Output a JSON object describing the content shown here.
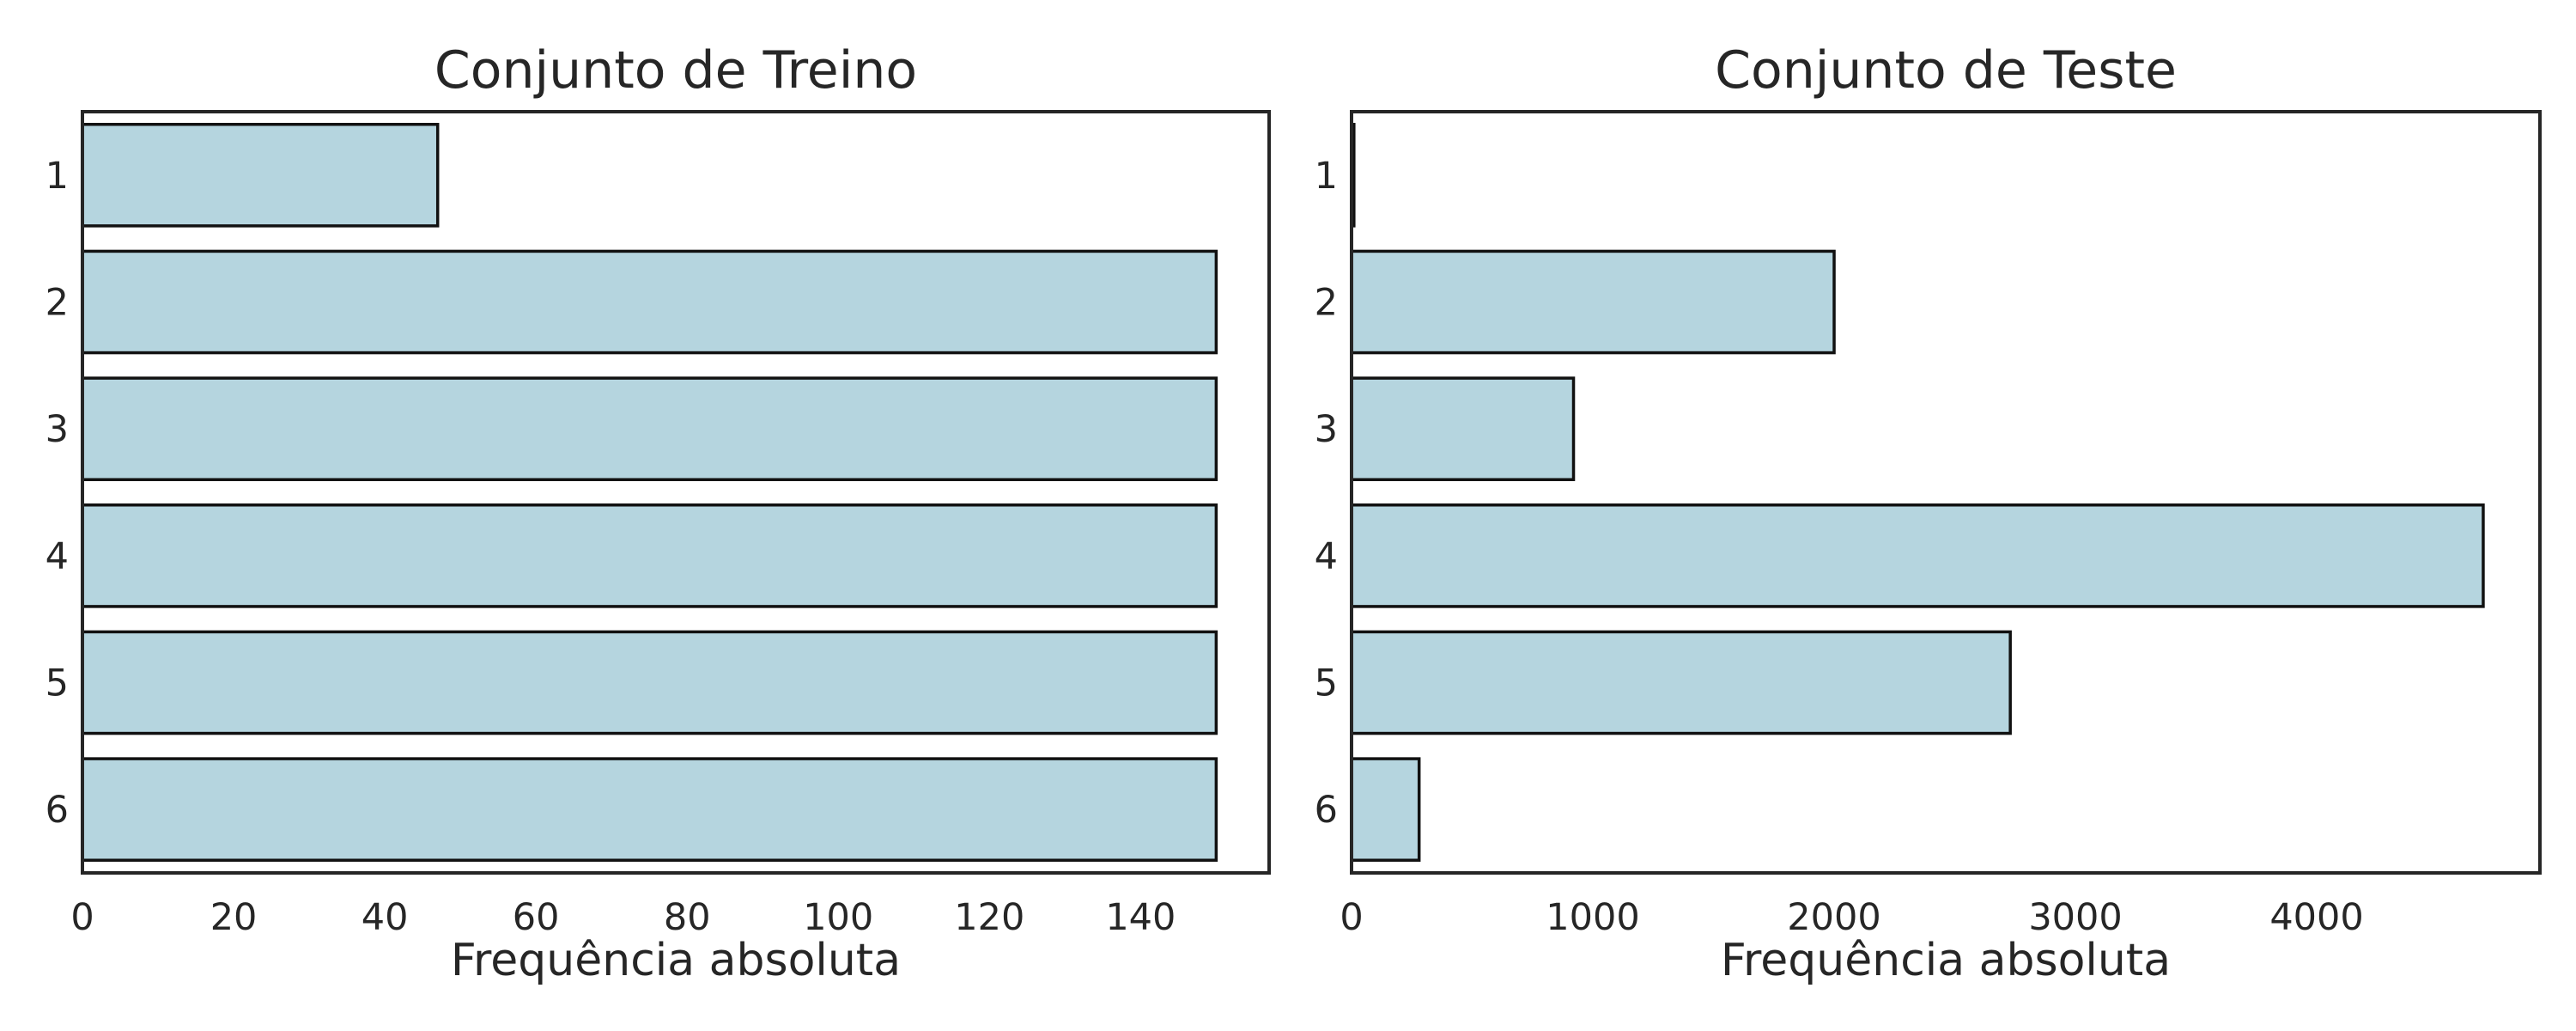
{
  "chart_data": [
    {
      "type": "bar",
      "orientation": "horizontal",
      "title": "Conjunto de Treino",
      "xlabel": "Frequência absoluta",
      "ylabel": "",
      "categories": [
        "1",
        "2",
        "3",
        "4",
        "5",
        "6"
      ],
      "values": [
        47,
        150,
        150,
        150,
        150,
        150
      ],
      "xlim": [
        0,
        157
      ],
      "xticks": [
        0,
        20,
        40,
        60,
        80,
        100,
        120,
        140
      ],
      "grid": false,
      "bar_color": "#b5d5df",
      "edge_color": "#111111"
    },
    {
      "type": "bar",
      "orientation": "horizontal",
      "title": "Conjunto de Teste",
      "xlabel": "Frequência absoluta",
      "ylabel": "",
      "categories": [
        "1",
        "2",
        "3",
        "4",
        "5",
        "6"
      ],
      "values": [
        10,
        2000,
        920,
        4690,
        2730,
        280
      ],
      "xlim": [
        0,
        4925
      ],
      "xticks": [
        0,
        1000,
        2000,
        3000,
        4000
      ],
      "grid": false,
      "bar_color": "#b5d5df",
      "edge_color": "#111111"
    }
  ]
}
